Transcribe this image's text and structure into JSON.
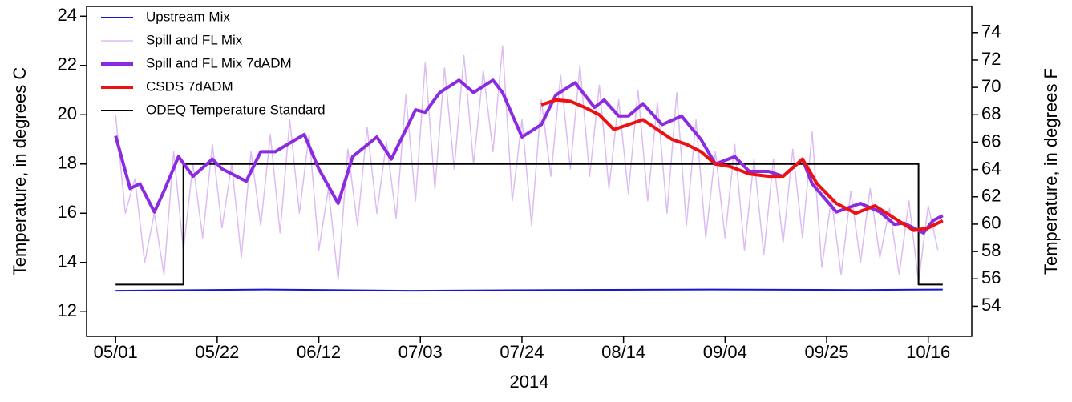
{
  "chart_data": {
    "type": "line",
    "xlabel": "2014",
    "ylabel": "Temperature, in degrees C",
    "y2label": "Temperature, in degrees F",
    "xlim": [
      "04/25",
      "10/25"
    ],
    "xticks": [
      "05/01",
      "05/22",
      "06/12",
      "07/03",
      "07/24",
      "08/14",
      "09/04",
      "09/25",
      "10/16"
    ],
    "ylim": [
      11,
      24.4
    ],
    "yticks": [
      12,
      14,
      16,
      18,
      20,
      22,
      24
    ],
    "y2lim": [
      51.8,
      75.92
    ],
    "y2ticks": [
      54,
      56,
      58,
      60,
      62,
      64,
      66,
      68,
      70,
      72,
      74
    ],
    "legend": "upper left",
    "series": [
      {
        "name": "Upstream Mix",
        "color": "#1515d6",
        "line_width": 2,
        "x": [
          "05/01",
          "06/01",
          "07/01",
          "08/01",
          "09/01",
          "10/01",
          "10/19"
        ],
        "values": [
          12.85,
          12.9,
          12.85,
          12.88,
          12.9,
          12.88,
          12.9
        ]
      },
      {
        "name": "Spill and FL Mix",
        "color": "#dcbcf2",
        "line_width": 1.5,
        "x": [
          "05/01",
          "05/03",
          "05/05",
          "05/07",
          "05/09",
          "05/11",
          "05/13",
          "05/15",
          "05/17",
          "05/19",
          "05/21",
          "05/23",
          "05/25",
          "05/27",
          "05/29",
          "05/31",
          "06/02",
          "06/04",
          "06/06",
          "06/08",
          "06/10",
          "06/12",
          "06/14",
          "06/16",
          "06/18",
          "06/20",
          "06/22",
          "06/24",
          "06/26",
          "06/28",
          "06/30",
          "07/02",
          "07/04",
          "07/06",
          "07/08",
          "07/10",
          "07/12",
          "07/14",
          "07/16",
          "07/18",
          "07/20",
          "07/22",
          "07/24",
          "07/26",
          "07/28",
          "07/30",
          "08/01",
          "08/03",
          "08/05",
          "08/07",
          "08/09",
          "08/11",
          "08/13",
          "08/15",
          "08/17",
          "08/19",
          "08/21",
          "08/23",
          "08/25",
          "08/27",
          "08/29",
          "08/31",
          "09/02",
          "09/04",
          "09/06",
          "09/08",
          "09/10",
          "09/12",
          "09/14",
          "09/16",
          "09/18",
          "09/20",
          "09/22",
          "09/24",
          "09/26",
          "09/28",
          "09/30",
          "10/02",
          "10/04",
          "10/06",
          "10/08",
          "10/10",
          "10/12",
          "10/14",
          "10/16",
          "10/18"
        ],
        "values": [
          20.0,
          16.0,
          17.4,
          14.0,
          16.0,
          13.5,
          18.5,
          14.5,
          18.0,
          15.0,
          18.8,
          15.4,
          18.0,
          14.2,
          18.5,
          15.5,
          19.2,
          15.2,
          19.8,
          16.0,
          19.2,
          14.5,
          17.0,
          13.3,
          18.6,
          15.5,
          19.5,
          16.0,
          18.9,
          15.8,
          20.8,
          16.5,
          22.1,
          17.0,
          21.9,
          17.8,
          22.4,
          18.0,
          21.8,
          18.5,
          22.8,
          16.5,
          19.8,
          15.5,
          20.6,
          17.5,
          21.6,
          17.8,
          22.0,
          17.5,
          21.2,
          17.0,
          20.6,
          16.8,
          21.0,
          16.5,
          20.5,
          16.0,
          20.9,
          15.5,
          19.8,
          15.0,
          18.5,
          15.0,
          18.8,
          14.5,
          18.2,
          14.3,
          18.2,
          14.8,
          18.6,
          15.0,
          19.3,
          13.8,
          16.6,
          13.5,
          16.9,
          14.0,
          17.0,
          14.2,
          16.2,
          13.5,
          16.5,
          13.2,
          16.3,
          14.5
        ]
      },
      {
        "name": "Spill and FL Mix 7dADM",
        "color": "#8a2be2",
        "line_width": 4,
        "x": [
          "05/01",
          "05/04",
          "05/06",
          "05/09",
          "05/11",
          "05/14",
          "05/17",
          "05/21",
          "05/23",
          "05/28",
          "05/31",
          "06/03",
          "06/09",
          "06/12",
          "06/16",
          "06/19",
          "06/24",
          "06/27",
          "07/02",
          "07/04",
          "07/07",
          "07/11",
          "07/14",
          "07/18",
          "07/20",
          "07/24",
          "07/28",
          "07/31",
          "08/04",
          "08/08",
          "08/10",
          "08/13",
          "08/15",
          "08/18",
          "08/22",
          "08/26",
          "08/30",
          "09/02",
          "09/06",
          "09/09",
          "09/13",
          "09/16",
          "09/20",
          "09/22",
          "09/27",
          "10/02",
          "10/06",
          "10/09",
          "10/11",
          "10/15",
          "10/17",
          "10/19"
        ],
        "values": [
          19.14,
          17.0,
          17.2,
          16.05,
          16.9,
          18.3,
          17.5,
          18.2,
          17.8,
          17.3,
          18.5,
          18.5,
          19.2,
          17.8,
          16.4,
          18.3,
          19.1,
          18.2,
          20.2,
          20.1,
          20.9,
          21.4,
          20.9,
          21.4,
          20.9,
          19.1,
          19.6,
          20.8,
          21.3,
          20.3,
          20.6,
          19.95,
          19.95,
          20.45,
          19.6,
          19.95,
          19.0,
          18.0,
          18.3,
          17.7,
          17.7,
          17.5,
          18.2,
          17.2,
          16.05,
          16.4,
          16.05,
          15.55,
          15.6,
          15.2,
          15.7,
          15.9
        ]
      },
      {
        "name": "CSDS 7dADM",
        "color": "#ee1111",
        "line_width": 4,
        "x": [
          "07/28",
          "07/31",
          "08/03",
          "08/06",
          "08/09",
          "08/12",
          "08/15",
          "08/18",
          "08/21",
          "08/24",
          "08/27",
          "08/30",
          "09/02",
          "09/05",
          "09/09",
          "09/13",
          "09/16",
          "09/20",
          "09/23",
          "09/27",
          "10/01",
          "10/05",
          "10/09",
          "10/13",
          "10/16",
          "10/19"
        ],
        "values": [
          20.4,
          20.6,
          20.55,
          20.3,
          20.0,
          19.4,
          19.6,
          19.8,
          19.4,
          19.0,
          18.8,
          18.5,
          18.0,
          17.9,
          17.6,
          17.5,
          17.5,
          18.2,
          17.2,
          16.4,
          16.0,
          16.3,
          15.8,
          15.3,
          15.4,
          15.7
        ]
      },
      {
        "name": "ODEQ Temperature Standard",
        "color": "#000000",
        "line_width": 2,
        "x": [
          "05/01",
          "05/15",
          "05/15",
          "10/14",
          "10/14",
          "10/19"
        ],
        "values": [
          13.1,
          13.1,
          18.0,
          18.0,
          13.1,
          13.1
        ]
      }
    ]
  }
}
